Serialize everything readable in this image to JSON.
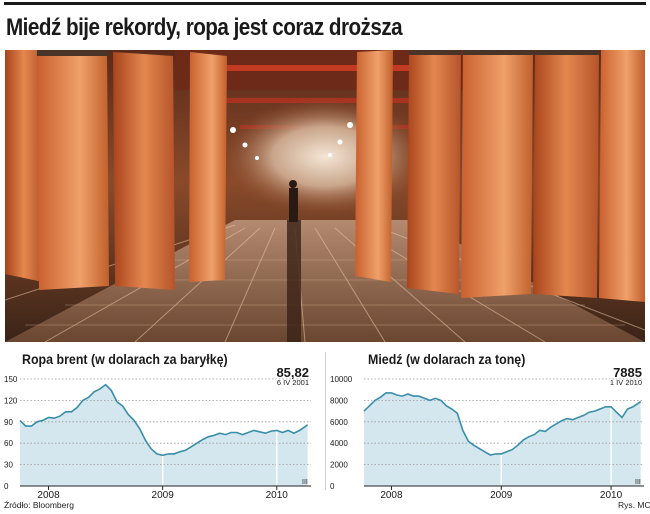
{
  "headline": "Miedź bije rekordy, ropa jest coraz droższa",
  "source": "Źródło: Bloomberg",
  "credit": "Rys. MC",
  "colors": {
    "line": "#3a8ea8",
    "fill": "#d4e7ee",
    "grid": "#9a9a9a",
    "text": "#1a1a1a"
  },
  "chart_data": [
    {
      "type": "area",
      "title": "Ropa brent (w dolarach za baryłkę)",
      "ylim": [
        0,
        150
      ],
      "yticks": [
        0,
        30,
        60,
        90,
        120,
        150
      ],
      "xlim": [
        2007.75,
        2010.3
      ],
      "x_tick_labels": [
        {
          "label": "2008",
          "x": 2008.0
        },
        {
          "label": "2009",
          "x": 2009.0
        },
        {
          "label": "2010",
          "x": 2010.0
        }
      ],
      "year_markers": [
        2009.0,
        2010.0
      ],
      "quarter_marks": "III",
      "annotation": {
        "value": "85,82",
        "date": "6 IV 2001"
      },
      "grid": true,
      "x": [
        2007.75,
        2007.8,
        2007.85,
        2007.9,
        2007.95,
        2008.0,
        2008.05,
        2008.1,
        2008.15,
        2008.2,
        2008.25,
        2008.3,
        2008.35,
        2008.4,
        2008.45,
        2008.5,
        2008.55,
        2008.6,
        2008.65,
        2008.7,
        2008.75,
        2008.8,
        2008.85,
        2008.9,
        2008.95,
        2009.0,
        2009.05,
        2009.1,
        2009.15,
        2009.2,
        2009.25,
        2009.3,
        2009.35,
        2009.4,
        2009.45,
        2009.5,
        2009.55,
        2009.6,
        2009.65,
        2009.7,
        2009.75,
        2009.8,
        2009.85,
        2009.9,
        2009.95,
        2010.0,
        2010.05,
        2010.1,
        2010.15,
        2010.2,
        2010.27
      ],
      "values": [
        92,
        84,
        84,
        90,
        92,
        96,
        95,
        98,
        104,
        104,
        110,
        120,
        124,
        132,
        136,
        142,
        134,
        118,
        112,
        100,
        92,
        80,
        64,
        52,
        45,
        43,
        45,
        45,
        48,
        50,
        55,
        60,
        65,
        69,
        71,
        74,
        72,
        75,
        75,
        72,
        75,
        78,
        76,
        74,
        77,
        78,
        75,
        78,
        74,
        78,
        85.82
      ]
    },
    {
      "type": "area",
      "title": "Miedź (w dolarach za tonę)",
      "ylim": [
        0,
        10000
      ],
      "yticks": [
        0,
        2000,
        4000,
        6000,
        8000,
        10000
      ],
      "xlim": [
        2007.75,
        2010.3
      ],
      "x_tick_labels": [
        {
          "label": "2008",
          "x": 2008.0
        },
        {
          "label": "2009",
          "x": 2009.0
        },
        {
          "label": "2010",
          "x": 2010.0
        }
      ],
      "year_markers": [
        2009.0,
        2010.0
      ],
      "quarter_marks": "III",
      "annotation": {
        "value": "7885",
        "date": "1 IV 2010"
      },
      "grid": true,
      "x": [
        2007.75,
        2007.8,
        2007.85,
        2007.9,
        2007.95,
        2008.0,
        2008.05,
        2008.1,
        2008.15,
        2008.2,
        2008.25,
        2008.3,
        2008.35,
        2008.4,
        2008.45,
        2008.5,
        2008.55,
        2008.6,
        2008.65,
        2008.7,
        2008.75,
        2008.8,
        2008.85,
        2008.9,
        2008.95,
        2009.0,
        2009.05,
        2009.1,
        2009.15,
        2009.2,
        2009.25,
        2009.3,
        2009.35,
        2009.4,
        2009.45,
        2009.5,
        2009.55,
        2009.6,
        2009.65,
        2009.7,
        2009.75,
        2009.8,
        2009.85,
        2009.9,
        2009.95,
        2010.0,
        2010.05,
        2010.1,
        2010.15,
        2010.2,
        2010.27
      ],
      "values": [
        7000,
        7500,
        8000,
        8300,
        8700,
        8700,
        8500,
        8400,
        8600,
        8400,
        8400,
        8200,
        8000,
        8200,
        8000,
        7500,
        7200,
        6800,
        5200,
        4200,
        3800,
        3500,
        3200,
        2900,
        3000,
        3000,
        3200,
        3400,
        3800,
        4300,
        4600,
        4800,
        5200,
        5100,
        5500,
        5800,
        6100,
        6300,
        6200,
        6400,
        6600,
        6900,
        7000,
        7200,
        7400,
        7400,
        6900,
        6400,
        7200,
        7400,
        7885
      ]
    }
  ]
}
